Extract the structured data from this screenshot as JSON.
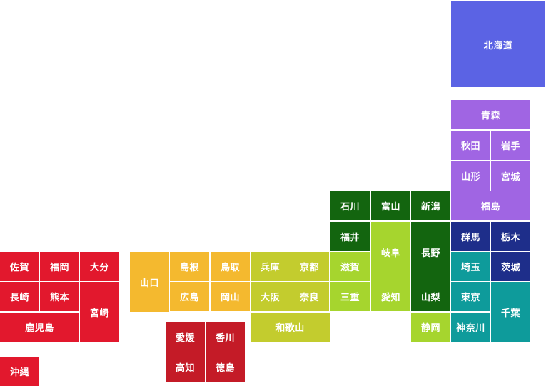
{
  "region_colors": {
    "hokkaido": "#5b63e4",
    "tohoku": "#a065e3",
    "kanto": "#1e2e8a",
    "kanto_south": "#0e9b9b",
    "chubu": "#13650f",
    "chubu_light": "#a6d52e",
    "kinki": "#c3cc2e",
    "chugoku": "#f4b92f",
    "shikoku": "#c41b27",
    "kyushu": "#e2182d"
  },
  "prefectures": [
    {
      "id": "hokkaido",
      "name": "北海道",
      "region": "hokkaido"
    },
    {
      "id": "aomori",
      "name": "青森",
      "region": "tohoku"
    },
    {
      "id": "akita",
      "name": "秋田",
      "region": "tohoku"
    },
    {
      "id": "iwate",
      "name": "岩手",
      "region": "tohoku"
    },
    {
      "id": "yamagata",
      "name": "山形",
      "region": "tohoku"
    },
    {
      "id": "miyagi",
      "name": "宮城",
      "region": "tohoku"
    },
    {
      "id": "fukushima",
      "name": "福島",
      "region": "tohoku"
    },
    {
      "id": "ishikawa",
      "name": "石川",
      "region": "chubu"
    },
    {
      "id": "toyama",
      "name": "富山",
      "region": "chubu"
    },
    {
      "id": "niigata",
      "name": "新潟",
      "region": "chubu"
    },
    {
      "id": "fukui",
      "name": "福井",
      "region": "chubu"
    },
    {
      "id": "gifu",
      "name": "岐阜",
      "region": "chubu_light"
    },
    {
      "id": "nagano",
      "name": "長野",
      "region": "chubu"
    },
    {
      "id": "gunma",
      "name": "群馬",
      "region": "kanto"
    },
    {
      "id": "tochigi",
      "name": "栃木",
      "region": "kanto"
    },
    {
      "id": "saitama",
      "name": "埼玉",
      "region": "kanto_south"
    },
    {
      "id": "ibaraki",
      "name": "茨城",
      "region": "kanto"
    },
    {
      "id": "shiga",
      "name": "滋賀",
      "region": "chubu_light"
    },
    {
      "id": "kyoto",
      "name": "京都",
      "region": "kinki"
    },
    {
      "id": "hyogo",
      "name": "兵庫",
      "region": "kinki"
    },
    {
      "id": "tottori",
      "name": "鳥取",
      "region": "chugoku"
    },
    {
      "id": "shimane",
      "name": "島根",
      "region": "chugoku"
    },
    {
      "id": "yamaguchi",
      "name": "山口",
      "region": "chugoku"
    },
    {
      "id": "hiroshima",
      "name": "広島",
      "region": "chugoku"
    },
    {
      "id": "okayama",
      "name": "岡山",
      "region": "chugoku"
    },
    {
      "id": "osaka",
      "name": "大阪",
      "region": "kinki"
    },
    {
      "id": "nara",
      "name": "奈良",
      "region": "kinki"
    },
    {
      "id": "mie",
      "name": "三重",
      "region": "chubu_light"
    },
    {
      "id": "aichi",
      "name": "愛知",
      "region": "chubu_light"
    },
    {
      "id": "yamanashi",
      "name": "山梨",
      "region": "chubu"
    },
    {
      "id": "tokyo",
      "name": "東京",
      "region": "kanto_south"
    },
    {
      "id": "chiba",
      "name": "千葉",
      "region": "kanto_south"
    },
    {
      "id": "wakayama",
      "name": "和歌山",
      "region": "kinki"
    },
    {
      "id": "shizuoka",
      "name": "静岡",
      "region": "chubu_light"
    },
    {
      "id": "kanagawa",
      "name": "神奈川",
      "region": "kanto_south"
    },
    {
      "id": "ehime",
      "name": "愛媛",
      "region": "shikoku"
    },
    {
      "id": "kagawa",
      "name": "香川",
      "region": "shikoku"
    },
    {
      "id": "kochi",
      "name": "高知",
      "region": "shikoku"
    },
    {
      "id": "tokushima",
      "name": "徳島",
      "region": "shikoku"
    },
    {
      "id": "saga",
      "name": "佐賀",
      "region": "kyushu"
    },
    {
      "id": "fukuoka",
      "name": "福岡",
      "region": "kyushu"
    },
    {
      "id": "oita",
      "name": "大分",
      "region": "kyushu"
    },
    {
      "id": "nagasaki",
      "name": "長崎",
      "region": "kyushu"
    },
    {
      "id": "kumamoto",
      "name": "熊本",
      "region": "kyushu"
    },
    {
      "id": "miyazaki",
      "name": "宮崎",
      "region": "kyushu"
    },
    {
      "id": "kagoshima",
      "name": "鹿児島",
      "region": "kyushu"
    },
    {
      "id": "okinawa",
      "name": "沖縄",
      "region": "kyushu"
    }
  ]
}
